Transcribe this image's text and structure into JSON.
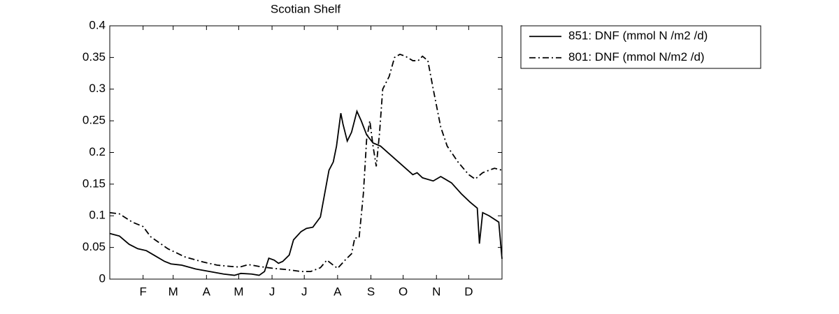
{
  "chart_data": {
    "type": "line",
    "title": "Scotian Shelf",
    "xlim": [
      1,
      366
    ],
    "xticks": [
      {
        "value": 32,
        "label": "F"
      },
      {
        "value": 60,
        "label": "M"
      },
      {
        "value": 91,
        "label": "A"
      },
      {
        "value": 121,
        "label": "M"
      },
      {
        "value": 152,
        "label": "J"
      },
      {
        "value": 182,
        "label": "J"
      },
      {
        "value": 213,
        "label": "A"
      },
      {
        "value": 244,
        "label": "S"
      },
      {
        "value": 274,
        "label": "O"
      },
      {
        "value": 305,
        "label": "N"
      },
      {
        "value": 335,
        "label": "D"
      }
    ],
    "ylim": [
      0,
      0.4
    ],
    "yticks": [
      0,
      0.05,
      0.1,
      0.15,
      0.2,
      0.25,
      0.3,
      0.35,
      0.4
    ],
    "legend": "outside-top-right",
    "series": [
      {
        "name": "851: DNF (mmol N /m2 /d)",
        "color": "#000000",
        "style": "solid",
        "x": [
          1,
          10,
          19,
          27,
          35,
          43,
          52,
          58,
          68,
          81,
          94,
          107,
          117,
          123,
          133,
          140,
          145,
          149,
          154,
          158,
          162,
          168,
          172,
          179,
          184,
          190,
          197,
          201,
          205,
          209,
          212,
          216,
          218,
          222,
          226,
          231,
          235,
          240,
          246,
          253,
          263,
          273,
          283,
          287,
          292,
          302,
          309,
          319,
          328,
          336,
          343,
          345,
          348,
          354,
          363,
          366
        ],
        "values": [
          0.072,
          0.068,
          0.055,
          0.048,
          0.045,
          0.037,
          0.028,
          0.024,
          0.022,
          0.016,
          0.012,
          0.008,
          0.006,
          0.009,
          0.008,
          0.006,
          0.012,
          0.033,
          0.03,
          0.025,
          0.028,
          0.038,
          0.062,
          0.075,
          0.08,
          0.082,
          0.098,
          0.135,
          0.172,
          0.185,
          0.21,
          0.262,
          0.245,
          0.218,
          0.232,
          0.265,
          0.25,
          0.228,
          0.215,
          0.21,
          0.195,
          0.18,
          0.165,
          0.168,
          0.16,
          0.155,
          0.162,
          0.152,
          0.135,
          0.122,
          0.112,
          0.056,
          0.105,
          0.1,
          0.09,
          0.032
        ]
      },
      {
        "name": "801: DNF (mmol N/m2 /d)",
        "color": "#000000",
        "style": "dashdot",
        "x": [
          1,
          10,
          22,
          32,
          39,
          55,
          71,
          88,
          101,
          114,
          122,
          130,
          140,
          153,
          166,
          179,
          188,
          197,
          203,
          209,
          213,
          220,
          226,
          229,
          233,
          237,
          240,
          243,
          246,
          249,
          252,
          255,
          261,
          266,
          271,
          276,
          283,
          288,
          292,
          297,
          302,
          309,
          315,
          325,
          335,
          341,
          348,
          354,
          359,
          366
        ],
        "values": [
          0.105,
          0.103,
          0.09,
          0.083,
          0.067,
          0.048,
          0.035,
          0.027,
          0.022,
          0.02,
          0.019,
          0.023,
          0.02,
          0.017,
          0.015,
          0.012,
          0.012,
          0.018,
          0.03,
          0.022,
          0.017,
          0.03,
          0.04,
          0.065,
          0.065,
          0.135,
          0.22,
          0.25,
          0.21,
          0.178,
          0.23,
          0.3,
          0.32,
          0.35,
          0.355,
          0.352,
          0.345,
          0.345,
          0.352,
          0.345,
          0.3,
          0.24,
          0.21,
          0.185,
          0.165,
          0.158,
          0.168,
          0.172,
          0.175,
          0.172
        ]
      }
    ]
  }
}
